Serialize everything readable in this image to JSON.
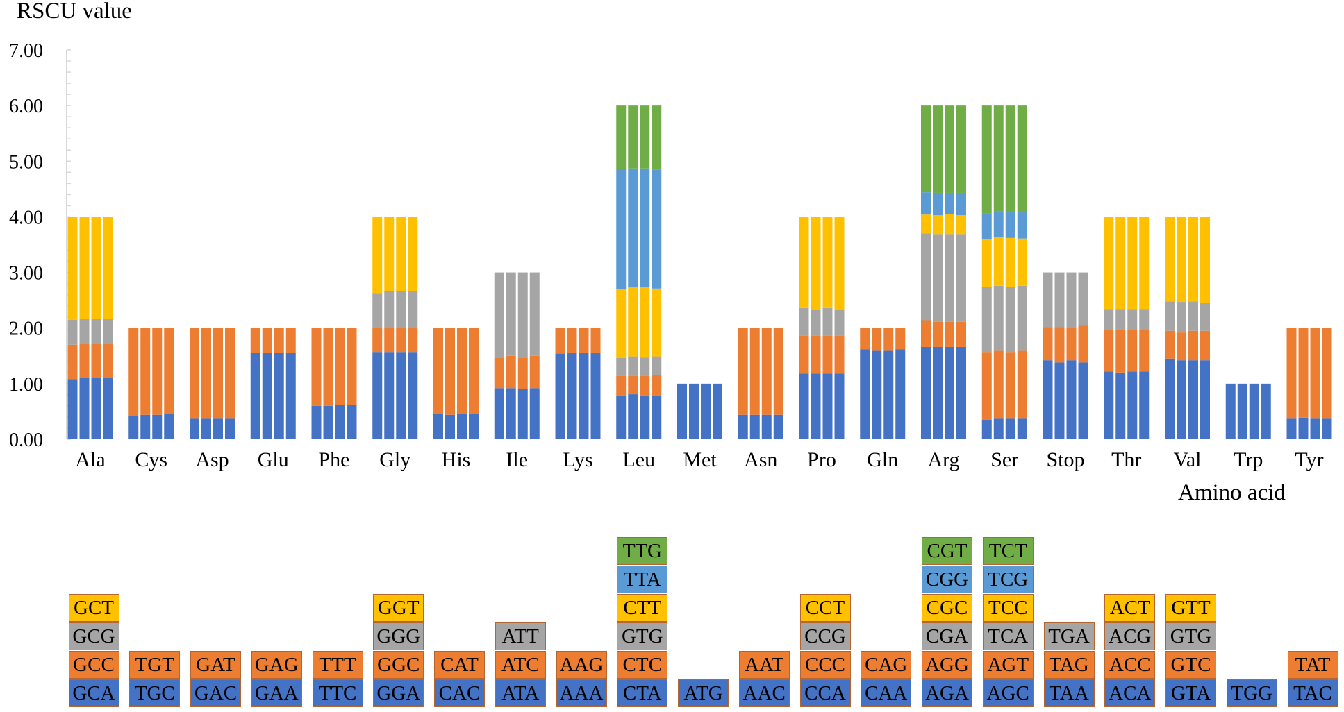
{
  "chart_data": {
    "type": "bar",
    "stacked": true,
    "ylabel": "RSCU value",
    "xlabel": "Amino acid",
    "ylim": [
      0,
      7
    ],
    "yticks": [
      "0.00",
      "1.00",
      "2.00",
      "3.00",
      "4.00",
      "5.00",
      "6.00",
      "7.00"
    ],
    "grid": false,
    "layer_colors": [
      "#4472C4",
      "#ED7D31",
      "#A5A5A5",
      "#FFC000",
      "#5B9BD5",
      "#70AD47"
    ],
    "samples_per_group": 4,
    "groups": [
      {
        "name": "Ala",
        "codons": [
          {
            "codon": "GCA",
            "values": [
              1.08,
              1.1,
              1.1,
              1.1
            ]
          },
          {
            "codon": "GCC",
            "values": [
              0.62,
              0.62,
              0.62,
              0.62
            ]
          },
          {
            "codon": "GCG",
            "values": [
              0.45,
              0.45,
              0.45,
              0.45
            ]
          },
          {
            "codon": "GCT",
            "values": [
              1.85,
              1.83,
              1.83,
              1.83
            ]
          }
        ]
      },
      {
        "name": "Cys",
        "codons": [
          {
            "codon": "TGC",
            "values": [
              0.42,
              0.44,
              0.44,
              0.46
            ]
          },
          {
            "codon": "TGT",
            "values": [
              1.58,
              1.56,
              1.56,
              1.54
            ]
          }
        ]
      },
      {
        "name": "Asp",
        "codons": [
          {
            "codon": "GAC",
            "values": [
              0.37,
              0.37,
              0.37,
              0.37
            ]
          },
          {
            "codon": "GAT",
            "values": [
              1.63,
              1.63,
              1.63,
              1.63
            ]
          }
        ]
      },
      {
        "name": "Glu",
        "codons": [
          {
            "codon": "GAA",
            "values": [
              1.55,
              1.55,
              1.55,
              1.55
            ]
          },
          {
            "codon": "GAG",
            "values": [
              0.45,
              0.45,
              0.45,
              0.45
            ]
          }
        ]
      },
      {
        "name": "Phe",
        "codons": [
          {
            "codon": "TTC",
            "values": [
              0.6,
              0.6,
              0.62,
              0.62
            ]
          },
          {
            "codon": "TTT",
            "values": [
              1.4,
              1.4,
              1.38,
              1.38
            ]
          }
        ]
      },
      {
        "name": "Gly",
        "codons": [
          {
            "codon": "GGA",
            "values": [
              1.57,
              1.57,
              1.57,
              1.57
            ]
          },
          {
            "codon": "GGC",
            "values": [
              0.43,
              0.43,
              0.43,
              0.43
            ]
          },
          {
            "codon": "GGG",
            "values": [
              0.63,
              0.66,
              0.66,
              0.66
            ]
          },
          {
            "codon": "GGT",
            "values": [
              1.37,
              1.34,
              1.34,
              1.34
            ]
          }
        ]
      },
      {
        "name": "His",
        "codons": [
          {
            "codon": "CAC",
            "values": [
              0.46,
              0.44,
              0.46,
              0.46
            ]
          },
          {
            "codon": "CAT",
            "values": [
              1.54,
              1.56,
              1.54,
              1.54
            ]
          }
        ]
      },
      {
        "name": "Ile",
        "codons": [
          {
            "codon": "ATA",
            "values": [
              0.92,
              0.92,
              0.9,
              0.92
            ]
          },
          {
            "codon": "ATC",
            "values": [
              0.54,
              0.58,
              0.56,
              0.58
            ]
          },
          {
            "codon": "ATT",
            "values": [
              1.54,
              1.5,
              1.54,
              1.5
            ]
          }
        ]
      },
      {
        "name": "Lys",
        "codons": [
          {
            "codon": "AAA",
            "values": [
              1.54,
              1.56,
              1.56,
              1.56
            ]
          },
          {
            "codon": "AAG",
            "values": [
              0.46,
              0.44,
              0.44,
              0.44
            ]
          }
        ]
      },
      {
        "name": "Leu",
        "codons": [
          {
            "codon": "CTA",
            "values": [
              0.79,
              0.81,
              0.79,
              0.79
            ]
          },
          {
            "codon": "CTC",
            "values": [
              0.35,
              0.33,
              0.35,
              0.37
            ]
          },
          {
            "codon": "GTG",
            "values": [
              0.32,
              0.35,
              0.33,
              0.33
            ]
          },
          {
            "codon": "CTT",
            "values": [
              1.24,
              1.24,
              1.26,
              1.22
            ]
          },
          {
            "codon": "TTA",
            "values": [
              2.16,
              2.14,
              2.14,
              2.14
            ]
          },
          {
            "codon": "TTG",
            "values": [
              1.14,
              1.13,
              1.13,
              1.15
            ]
          }
        ]
      },
      {
        "name": "Met",
        "codons": [
          {
            "codon": "ATG",
            "values": [
              1.0,
              1.0,
              1.0,
              1.0
            ]
          }
        ]
      },
      {
        "name": "Asn",
        "codons": [
          {
            "codon": "AAC",
            "values": [
              0.44,
              0.44,
              0.44,
              0.44
            ]
          },
          {
            "codon": "AAT",
            "values": [
              1.56,
              1.56,
              1.56,
              1.56
            ]
          }
        ]
      },
      {
        "name": "Pro",
        "codons": [
          {
            "codon": "CCA",
            "values": [
              1.18,
              1.18,
              1.18,
              1.18
            ]
          },
          {
            "codon": "CCC",
            "values": [
              0.68,
              0.68,
              0.68,
              0.68
            ]
          },
          {
            "codon": "CCG",
            "values": [
              0.5,
              0.47,
              0.5,
              0.47
            ]
          },
          {
            "codon": "CCT",
            "values": [
              1.64,
              1.67,
              1.64,
              1.67
            ]
          }
        ]
      },
      {
        "name": "Gln",
        "codons": [
          {
            "codon": "CAA",
            "values": [
              1.62,
              1.59,
              1.59,
              1.62
            ]
          },
          {
            "codon": "CAG",
            "values": [
              0.38,
              0.41,
              0.41,
              0.38
            ]
          }
        ]
      },
      {
        "name": "Arg",
        "codons": [
          {
            "codon": "AGA",
            "values": [
              1.66,
              1.66,
              1.66,
              1.66
            ]
          },
          {
            "codon": "AGG",
            "values": [
              0.48,
              0.45,
              0.45,
              0.45
            ]
          },
          {
            "codon": "CGA",
            "values": [
              1.56,
              1.58,
              1.58,
              1.58
            ]
          },
          {
            "codon": "CGC",
            "values": [
              0.34,
              0.34,
              0.36,
              0.34
            ]
          },
          {
            "codon": "CGG",
            "values": [
              0.4,
              0.4,
              0.38,
              0.4
            ]
          },
          {
            "codon": "CGT",
            "values": [
              1.56,
              1.57,
              1.57,
              1.57
            ]
          }
        ]
      },
      {
        "name": "Ser",
        "codons": [
          {
            "codon": "AGC",
            "values": [
              0.35,
              0.37,
              0.37,
              0.37
            ]
          },
          {
            "codon": "AGT",
            "values": [
              1.22,
              1.22,
              1.2,
              1.22
            ]
          },
          {
            "codon": "TCA",
            "values": [
              1.17,
              1.17,
              1.17,
              1.17
            ]
          },
          {
            "codon": "TCC",
            "values": [
              0.86,
              0.88,
              0.88,
              0.85
            ]
          },
          {
            "codon": "TCG",
            "values": [
              0.46,
              0.46,
              0.46,
              0.47
            ]
          },
          {
            "codon": "TCT",
            "values": [
              1.94,
              1.9,
              1.92,
              1.92
            ]
          }
        ]
      },
      {
        "name": "Stop",
        "codons": [
          {
            "codon": "TAA",
            "values": [
              1.42,
              1.38,
              1.42,
              1.38
            ]
          },
          {
            "codon": "TAG",
            "values": [
              0.6,
              0.64,
              0.58,
              0.66
            ]
          },
          {
            "codon": "TGA",
            "values": [
              0.98,
              0.98,
              1.0,
              0.96
            ]
          }
        ]
      },
      {
        "name": "Thr",
        "codons": [
          {
            "codon": "ACA",
            "values": [
              1.22,
              1.2,
              1.22,
              1.22
            ]
          },
          {
            "codon": "ACC",
            "values": [
              0.74,
              0.76,
              0.74,
              0.74
            ]
          },
          {
            "codon": "ACG",
            "values": [
              0.38,
              0.38,
              0.38,
              0.38
            ]
          },
          {
            "codon": "ACT",
            "values": [
              1.66,
              1.66,
              1.66,
              1.66
            ]
          }
        ]
      },
      {
        "name": "Val",
        "codons": [
          {
            "codon": "GTA",
            "values": [
              1.45,
              1.42,
              1.42,
              1.42
            ]
          },
          {
            "codon": "GTC",
            "values": [
              0.5,
              0.5,
              0.53,
              0.53
            ]
          },
          {
            "codon": "GTG",
            "values": [
              0.53,
              0.55,
              0.53,
              0.5
            ]
          },
          {
            "codon": "GTT",
            "values": [
              1.52,
              1.53,
              1.52,
              1.55
            ]
          }
        ]
      },
      {
        "name": "Trp",
        "codons": [
          {
            "codon": "TGG",
            "values": [
              1.0,
              1.0,
              1.0,
              1.0
            ]
          }
        ]
      },
      {
        "name": "Tyr",
        "codons": [
          {
            "codon": "TAC",
            "values": [
              0.37,
              0.39,
              0.37,
              0.37
            ]
          },
          {
            "codon": "TAT",
            "values": [
              1.63,
              1.61,
              1.63,
              1.63
            ]
          }
        ]
      }
    ]
  }
}
